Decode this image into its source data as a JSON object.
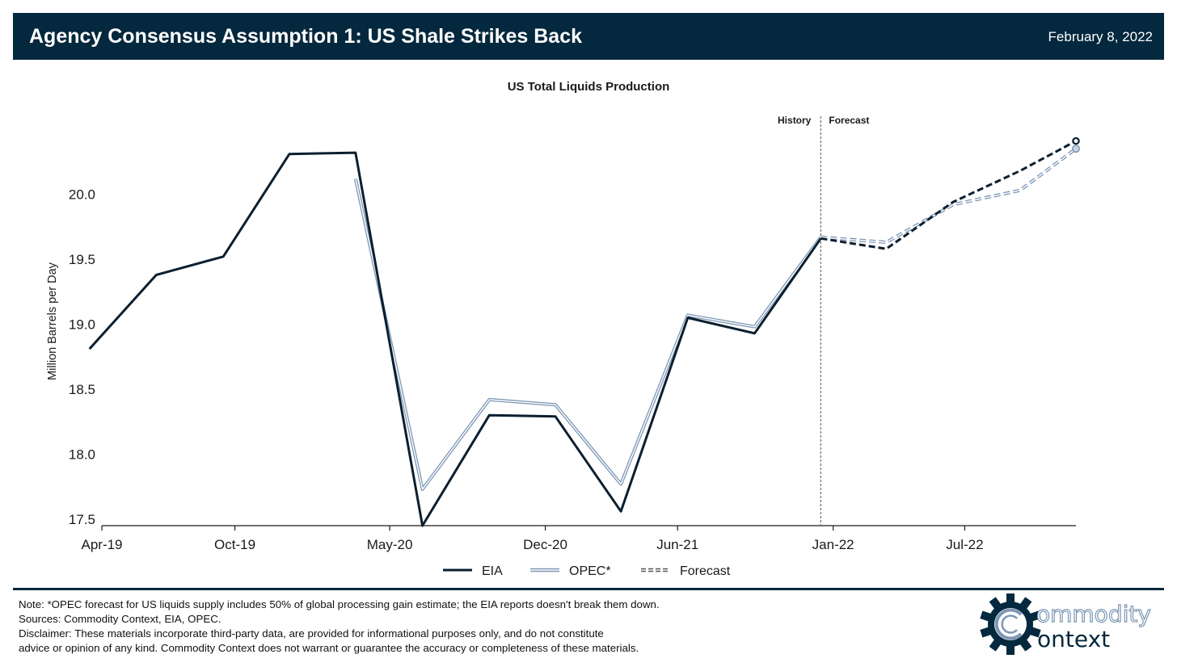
{
  "header": {
    "title": "Agency Consensus Assumption 1: US Shale Strikes Back",
    "date": "February 8, 2022"
  },
  "chart_data": {
    "type": "line",
    "title": "US Total Liquids Production",
    "ylabel": "Million Barrels per Day",
    "xlabel": "",
    "ylim": [
      17.45,
      20.6
    ],
    "yticks": [
      17.5,
      18.0,
      18.5,
      19.0,
      19.5,
      20.0
    ],
    "ytick_labels": [
      "17.5",
      "18.0",
      "18.5",
      "19.0",
      "19.5",
      "20.0"
    ],
    "xticks": [
      "2019-04-01",
      "2019-10-01",
      "2020-05-01",
      "2020-12-01",
      "2021-06-01",
      "2022-01-01",
      "2022-07-01"
    ],
    "xtick_labels": [
      "Apr-19",
      "Oct-19",
      "May-20",
      "Dec-20",
      "Jun-21",
      "Jan-22",
      "Jul-22"
    ],
    "xlim": [
      "2019-04-01",
      "2022-12-01"
    ],
    "annotations": {
      "history": "History",
      "forecast": "Forecast",
      "divider_date": "2021-12-15"
    },
    "series": [
      {
        "name": "EIA",
        "style": "solid",
        "color": "#0b1f2f",
        "points": [
          [
            "2019-03-15",
            18.81
          ],
          [
            "2019-06-15",
            19.38
          ],
          [
            "2019-09-15",
            19.52
          ],
          [
            "2019-12-15",
            20.31
          ],
          [
            "2020-03-15",
            20.32
          ],
          [
            "2020-06-15",
            17.45
          ],
          [
            "2020-09-15",
            18.3
          ],
          [
            "2020-12-15",
            18.29
          ],
          [
            "2021-03-15",
            17.56
          ],
          [
            "2021-06-15",
            19.05
          ],
          [
            "2021-09-15",
            18.93
          ],
          [
            "2021-12-15",
            19.66
          ]
        ]
      },
      {
        "name": "OPEC*",
        "style": "double",
        "color": "#7d97b5",
        "points": [
          [
            "2020-03-15",
            20.12
          ],
          [
            "2020-06-15",
            17.73
          ],
          [
            "2020-09-15",
            18.42
          ],
          [
            "2020-12-15",
            18.38
          ],
          [
            "2021-03-15",
            17.77
          ],
          [
            "2021-06-15",
            19.07
          ],
          [
            "2021-09-15",
            18.98
          ],
          [
            "2021-12-15",
            19.67
          ]
        ]
      },
      {
        "name": "EIA forecast",
        "style": "dashed",
        "color": "#0b1f2f",
        "points": [
          [
            "2021-12-15",
            19.66
          ],
          [
            "2022-03-15",
            19.58
          ],
          [
            "2022-06-15",
            19.94
          ],
          [
            "2022-09-15",
            20.18
          ],
          [
            "2022-12-01",
            20.41
          ]
        ]
      },
      {
        "name": "OPEC forecast",
        "style": "double-dashed",
        "color": "#7d97b5",
        "points": [
          [
            "2021-12-15",
            19.67
          ],
          [
            "2022-03-15",
            19.63
          ],
          [
            "2022-06-15",
            19.92
          ],
          [
            "2022-09-15",
            20.03
          ],
          [
            "2022-12-01",
            20.35
          ]
        ]
      }
    ],
    "legend": {
      "placement": "bottom-center",
      "items": [
        {
          "label": "EIA",
          "style": "solid"
        },
        {
          "label": "OPEC*",
          "style": "double"
        },
        {
          "label": "Forecast",
          "style": "double-dashed"
        }
      ]
    }
  },
  "notes": {
    "line1": "Note: *OPEC forecast for US liquids supply includes 50% of global processing gain estimate; the EIA reports doesn't break them down.",
    "line2": "Sources: Commodity Context, EIA, OPEC.",
    "line3": "Disclaimer: These materials incorporate third-party data, are provided for informational purposes only, and do not constitute",
    "line4": "advice or opinion of any kind. Commodity Context does not warrant or guarantee the accuracy or completeness of these materials."
  },
  "logo": {
    "line1": "ommodity",
    "line2": "ontext",
    "color_dark": "#04283d",
    "color_accent": "#7d97b5"
  }
}
